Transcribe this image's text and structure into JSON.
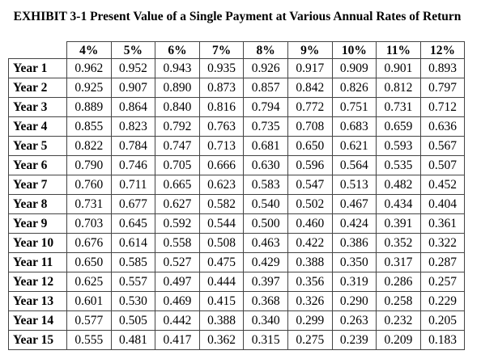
{
  "exhibit": {
    "title": "EXHIBIT 3-1 Present Value of a Single Payment at Various Annual Rates of Return"
  },
  "table": {
    "columns": [
      "4%",
      "5%",
      "6%",
      "7%",
      "8%",
      "9%",
      "10%",
      "11%",
      "12%"
    ],
    "rows": [
      {
        "label": "Year 1",
        "values": [
          "0.962",
          "0.952",
          "0.943",
          "0.935",
          "0.926",
          "0.917",
          "0.909",
          "0.901",
          "0.893"
        ]
      },
      {
        "label": "Year 2",
        "values": [
          "0.925",
          "0.907",
          "0.890",
          "0.873",
          "0.857",
          "0.842",
          "0.826",
          "0.812",
          "0.797"
        ]
      },
      {
        "label": "Year 3",
        "values": [
          "0.889",
          "0.864",
          "0.840",
          "0.816",
          "0.794",
          "0.772",
          "0.751",
          "0.731",
          "0.712"
        ]
      },
      {
        "label": "Year 4",
        "values": [
          "0.855",
          "0.823",
          "0.792",
          "0.763",
          "0.735",
          "0.708",
          "0.683",
          "0.659",
          "0.636"
        ]
      },
      {
        "label": "Year 5",
        "values": [
          "0.822",
          "0.784",
          "0.747",
          "0.713",
          "0.681",
          "0.650",
          "0.621",
          "0.593",
          "0.567"
        ]
      },
      {
        "label": "Year 6",
        "values": [
          "0.790",
          "0.746",
          "0.705",
          "0.666",
          "0.630",
          "0.596",
          "0.564",
          "0.535",
          "0.507"
        ]
      },
      {
        "label": "Year 7",
        "values": [
          "0.760",
          "0.711",
          "0.665",
          "0.623",
          "0.583",
          "0.547",
          "0.513",
          "0.482",
          "0.452"
        ]
      },
      {
        "label": "Year 8",
        "values": [
          "0.731",
          "0.677",
          "0.627",
          "0.582",
          "0.540",
          "0.502",
          "0.467",
          "0.434",
          "0.404"
        ]
      },
      {
        "label": "Year 9",
        "values": [
          "0.703",
          "0.645",
          "0.592",
          "0.544",
          "0.500",
          "0.460",
          "0.424",
          "0.391",
          "0.361"
        ]
      },
      {
        "label": "Year 10",
        "values": [
          "0.676",
          "0.614",
          "0.558",
          "0.508",
          "0.463",
          "0.422",
          "0.386",
          "0.352",
          "0.322"
        ]
      },
      {
        "label": "Year 11",
        "values": [
          "0.650",
          "0.585",
          "0.527",
          "0.475",
          "0.429",
          "0.388",
          "0.350",
          "0.317",
          "0.287"
        ]
      },
      {
        "label": "Year 12",
        "values": [
          "0.625",
          "0.557",
          "0.497",
          "0.444",
          "0.397",
          "0.356",
          "0.319",
          "0.286",
          "0.257"
        ]
      },
      {
        "label": "Year 13",
        "values": [
          "0.601",
          "0.530",
          "0.469",
          "0.415",
          "0.368",
          "0.326",
          "0.290",
          "0.258",
          "0.229"
        ]
      },
      {
        "label": "Year 14",
        "values": [
          "0.577",
          "0.505",
          "0.442",
          "0.388",
          "0.340",
          "0.299",
          "0.263",
          "0.232",
          "0.205"
        ]
      },
      {
        "label": "Year 15",
        "values": [
          "0.555",
          "0.481",
          "0.417",
          "0.362",
          "0.315",
          "0.275",
          "0.239",
          "0.209",
          "0.183"
        ]
      }
    ]
  }
}
